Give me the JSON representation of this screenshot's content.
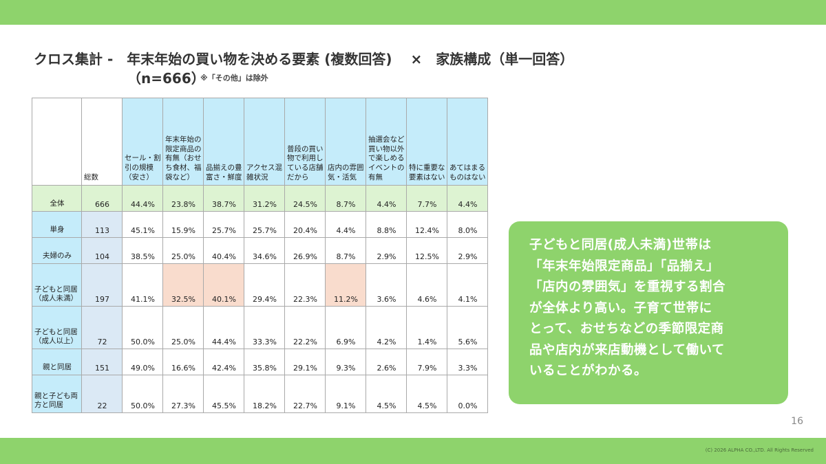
{
  "title": "クロス集計 -　年末年始の買い物を決める要素 (複数回答)　 ×　家族構成（単一回答）",
  "subtitle": "（n=666）",
  "note": "※「その他」は除外",
  "table": {
    "columns": [
      "総数",
      "セール・割引の規模（安さ）",
      "年末年始の限定商品の有無（おせち食材、福袋など）",
      "品揃えの豊富さ・鮮度",
      "アクセス混雑状況",
      "普段の買い物で利用している店舗だから",
      "店内の雰囲気・活気",
      "抽選会など買い物以外で楽しめるイベントの有無",
      "特に重要な要素はない",
      "あてはまるものはない"
    ],
    "rows": [
      {
        "label": "全体",
        "values": [
          "666",
          "44.4%",
          "23.8%",
          "38.7%",
          "31.2%",
          "24.5%",
          "8.7%",
          "4.4%",
          "7.7%",
          "4.4%"
        ]
      },
      {
        "label": "単身",
        "values": [
          "113",
          "45.1%",
          "15.9%",
          "25.7%",
          "25.7%",
          "20.4%",
          "4.4%",
          "8.8%",
          "12.4%",
          "8.0%"
        ]
      },
      {
        "label": "夫婦のみ",
        "values": [
          "104",
          "38.5%",
          "25.0%",
          "40.4%",
          "34.6%",
          "26.9%",
          "8.7%",
          "2.9%",
          "12.5%",
          "2.9%"
        ]
      },
      {
        "label": "子どもと同居（成人未満）",
        "values": [
          "197",
          "41.1%",
          "32.5%",
          "40.1%",
          "29.4%",
          "22.3%",
          "11.2%",
          "3.6%",
          "4.6%",
          "4.1%"
        ]
      },
      {
        "label": "子どもと同居（成人以上）",
        "values": [
          "72",
          "50.0%",
          "25.0%",
          "44.4%",
          "33.3%",
          "22.2%",
          "6.9%",
          "4.2%",
          "1.4%",
          "5.6%"
        ]
      },
      {
        "label": "親と同居",
        "values": [
          "151",
          "49.0%",
          "16.6%",
          "42.4%",
          "35.8%",
          "29.1%",
          "9.3%",
          "2.6%",
          "7.9%",
          "3.3%"
        ]
      },
      {
        "label": "親と子ども両方と同居",
        "values": [
          "22",
          "50.0%",
          "27.3%",
          "45.5%",
          "18.2%",
          "22.7%",
          "9.1%",
          "4.5%",
          "4.5%",
          "0.0%"
        ]
      }
    ]
  },
  "callout": {
    "lines": [
      "子どもと同居(成人未満)世帯は",
      "「年末年始限定商品」「品揃え」",
      "「店内の雰囲気」を重視する割合",
      "が全体より高い。子育て世帯に",
      "とって、おせちなどの季節限定商",
      "品や店内が来店動機として働いて",
      "いることがわかる。"
    ]
  },
  "page_number": "16",
  "copyright": "(C) 2026 ALPHA CO.,LTD. All Rights Reserved",
  "colors": {
    "band_green": "#8ed36c",
    "header_blue": "#c5ecfa",
    "total_row_green": "#ddf3d2",
    "highlight_peach": "#f9dccd"
  }
}
